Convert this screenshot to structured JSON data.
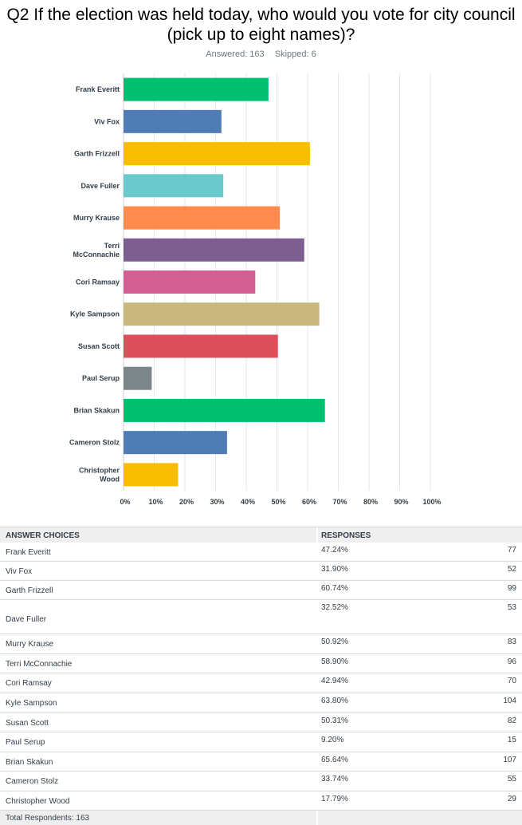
{
  "question": {
    "title_line1": "Q2 If the election was held today, who would you vote for city council",
    "title_line2": "(pick up to eight names)?",
    "answered": "Answered: 163",
    "skipped": "Skipped: 6"
  },
  "chart_data": {
    "type": "bar",
    "orientation": "horizontal",
    "categories": [
      [
        "Frank Everitt"
      ],
      [
        "Viv Fox"
      ],
      [
        "Garth Frizzell"
      ],
      [
        "Dave Fuller"
      ],
      [
        "Murry Krause"
      ],
      [
        "Terri",
        "McConnachie"
      ],
      [
        "Cori Ramsay"
      ],
      [
        "Kyle Sampson"
      ],
      [
        "Susan Scott"
      ],
      [
        "Paul Serup"
      ],
      [
        "Brian Skakun"
      ],
      [
        "Cameron Stolz"
      ],
      [
        "Christopher",
        "Wood"
      ]
    ],
    "values": [
      47.24,
      31.9,
      60.74,
      32.52,
      50.92,
      58.9,
      42.94,
      63.8,
      50.31,
      9.2,
      65.64,
      33.74,
      17.79
    ],
    "colors": [
      "#00bf6f",
      "#507cb6",
      "#f9be00",
      "#6bc8cd",
      "#ff8b4f",
      "#7d5e90",
      "#d25f90",
      "#c9b77d",
      "#dc4f5b",
      "#7b858a",
      "#00bf6f",
      "#507cb6",
      "#f9be00"
    ],
    "xlim": [
      0,
      100
    ],
    "xticks": [
      "0%",
      "10%",
      "20%",
      "30%",
      "40%",
      "50%",
      "60%",
      "70%",
      "80%",
      "90%",
      "100%"
    ],
    "grid": true
  },
  "table": {
    "header_choice": "ANSWER CHOICES",
    "header_responses": "RESPONSES",
    "rows": [
      {
        "name": "Frank Everitt",
        "pct": "47.24%",
        "count": "77"
      },
      {
        "name": "Viv Fox",
        "pct": "31.90%",
        "count": "52"
      },
      {
        "name": "Garth Frizzell",
        "pct": "60.74%",
        "count": "99"
      },
      {
        "name": "Dave Fuller",
        "pct": "32.52%",
        "count": "53"
      },
      {
        "name": "Murry Krause",
        "pct": "50.92%",
        "count": "83"
      },
      {
        "name": "Terri McConnachie",
        "pct": "58.90%",
        "count": "96"
      },
      {
        "name": "Cori Ramsay",
        "pct": "42.94%",
        "count": "70"
      },
      {
        "name": "Kyle Sampson",
        "pct": "63.80%",
        "count": "104"
      },
      {
        "name": "Susan Scott",
        "pct": "50.31%",
        "count": "82"
      },
      {
        "name": "Paul Serup",
        "pct": "9.20%",
        "count": "15"
      },
      {
        "name": "Brian Skakun",
        "pct": "65.64%",
        "count": "107"
      },
      {
        "name": "Cameron Stolz",
        "pct": "33.74%",
        "count": "55"
      },
      {
        "name": "Christopher Wood",
        "pct": "17.79%",
        "count": "29"
      }
    ],
    "total": "Total Respondents: 163"
  }
}
